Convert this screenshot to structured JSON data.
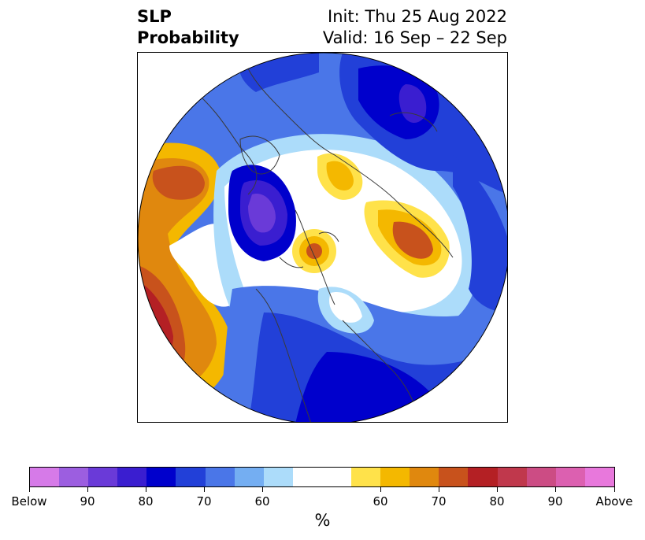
{
  "title": {
    "left_line1": "SLP",
    "left_line2": "Probability",
    "right_line1": "Init: Thu 25 Aug 2022",
    "right_line2": "Valid: 16 Sep – 22 Sep"
  },
  "colorbar": {
    "unit": "%",
    "tick_labels": [
      "Below",
      "90",
      "80",
      "70",
      "60",
      "60",
      "70",
      "80",
      "90",
      "Above"
    ],
    "colors": [
      "#d67ae8",
      "#9c5ee0",
      "#6a3ad8",
      "#3a1ed0",
      "#0000cc",
      "#2240d8",
      "#4a76e8",
      "#74aef2",
      "#acdcfa",
      "#ffffff",
      "#ffe24a",
      "#f4b800",
      "#e0880e",
      "#c8521c",
      "#b42024",
      "#c0384c",
      "#cc4c84",
      "#dc60b0",
      "#e878dc"
    ]
  },
  "map": {
    "projection": "north-polar-stereographic",
    "field": "SLP probability anomaly"
  }
}
